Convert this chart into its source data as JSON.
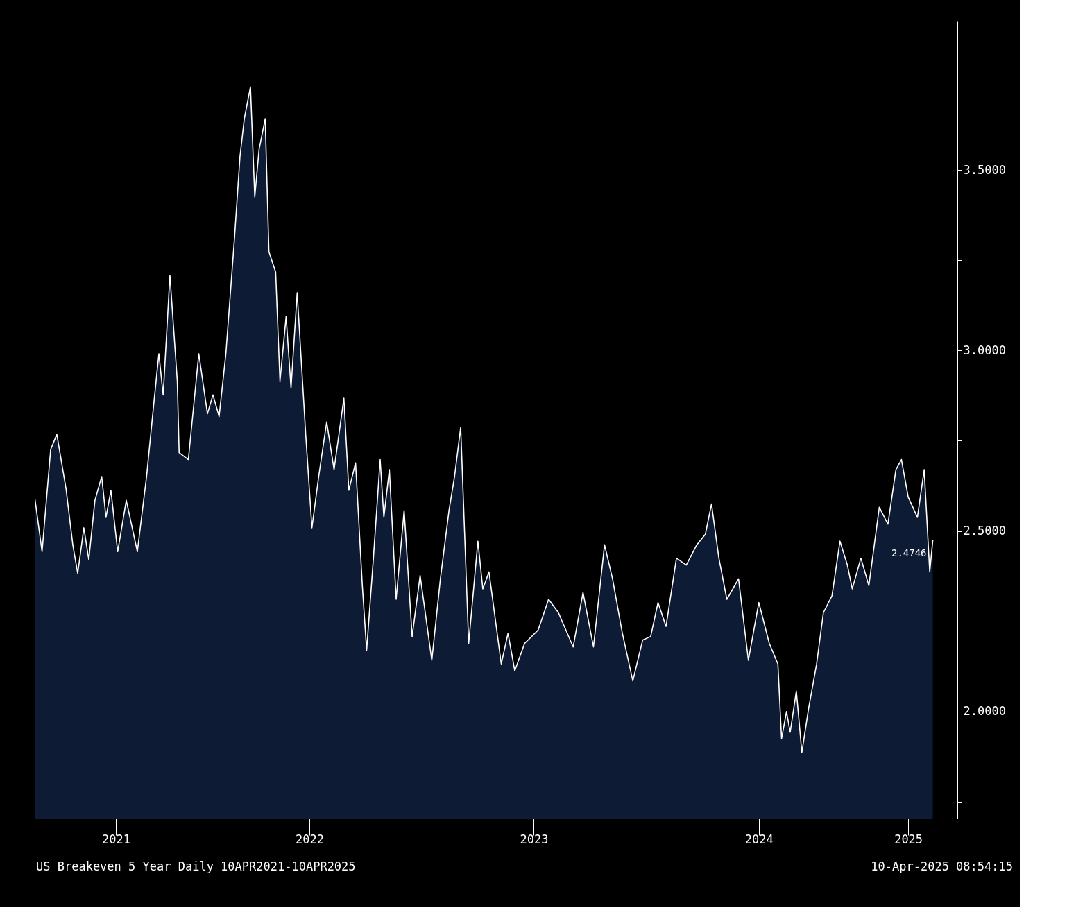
{
  "chart_data": {
    "type": "area",
    "x": [
      "2021-04-10",
      "2021-04-22",
      "2021-05-06",
      "2021-05-16",
      "2021-05-31",
      "2021-06-11",
      "2021-06-19",
      "2021-06-29",
      "2021-07-07",
      "2021-07-17",
      "2021-07-28",
      "2021-08-04",
      "2021-08-12",
      "2021-08-23",
      "2021-09-06",
      "2021-09-24",
      "2021-10-09",
      "2021-10-20",
      "2021-10-29",
      "2021-11-05",
      "2021-11-16",
      "2021-11-28",
      "2021-12-01",
      "2021-12-16",
      "2022-01-02",
      "2022-01-16",
      "2022-01-25",
      "2022-02-04",
      "2022-02-15",
      "2022-03-01",
      "2022-03-10",
      "2022-03-17",
      "2022-03-27",
      "2022-04-03",
      "2022-04-10",
      "2022-04-20",
      "2022-04-26",
      "2022-05-07",
      "2022-05-14",
      "2022-05-24",
      "2022-06-01",
      "2022-06-11",
      "2022-06-25",
      "2022-07-05",
      "2022-07-16",
      "2022-07-29",
      "2022-08-10",
      "2022-08-26",
      "2022-09-03",
      "2022-09-14",
      "2022-09-25",
      "2022-10-02",
      "2022-10-13",
      "2022-10-24",
      "2022-10-30",
      "2022-11-08",
      "2022-11-19",
      "2022-12-02",
      "2022-12-15",
      "2022-12-28",
      "2023-01-16",
      "2023-01-30",
      "2023-02-13",
      "2023-02-22",
      "2023-03-04",
      "2023-03-17",
      "2023-04-01",
      "2023-04-09",
      "2023-04-19",
      "2023-05-09",
      "2023-05-20",
      "2023-05-31",
      "2023-06-16",
      "2023-07-08",
      "2023-07-25",
      "2023-08-10",
      "2023-09-03",
      "2023-09-19",
      "2023-10-06",
      "2023-10-24",
      "2023-11-06",
      "2023-11-22",
      "2023-12-09",
      "2023-12-25",
      "2024-01-07",
      "2024-01-19",
      "2024-02-01",
      "2024-02-18",
      "2024-03-05",
      "2024-03-22",
      "2024-04-05",
      "2024-04-15",
      "2024-04-27",
      "2024-05-10",
      "2024-05-29",
      "2024-06-14",
      "2024-07-01",
      "2024-07-18",
      "2024-08-01",
      "2024-08-07",
      "2024-08-15",
      "2024-08-21",
      "2024-08-31",
      "2024-09-09",
      "2024-09-20",
      "2024-10-03",
      "2024-10-14",
      "2024-10-28",
      "2024-11-10",
      "2024-11-22",
      "2024-11-30",
      "2024-12-14",
      "2024-12-27",
      "2025-01-13",
      "2025-01-27",
      "2025-02-09",
      "2025-02-18",
      "2025-03-01",
      "2025-03-16",
      "2025-03-27",
      "2025-04-05",
      "2025-04-10"
    ],
    "series": [
      {
        "color": "#ffffff",
        "value_labels": [
          null,
          null,
          null,
          null,
          null,
          null,
          null,
          null,
          null,
          null,
          null,
          null,
          null,
          null,
          null,
          null,
          null,
          null,
          null,
          null,
          null,
          null,
          null,
          null,
          null,
          null,
          null,
          null,
          null,
          null,
          null,
          null,
          null,
          null,
          null,
          null,
          null,
          null,
          null,
          null,
          null,
          null,
          null,
          null,
          null,
          null,
          null,
          null,
          null,
          null,
          null,
          null,
          null,
          null,
          null,
          null,
          null,
          null,
          null,
          null,
          null,
          null,
          null,
          null,
          null,
          null,
          null,
          null,
          null,
          null,
          null,
          null,
          null,
          null,
          null,
          null,
          null,
          null,
          null,
          null,
          null,
          null,
          null,
          null,
          null,
          null,
          null,
          null,
          null,
          null,
          null,
          null,
          null,
          null,
          null,
          null,
          null,
          null,
          null,
          null,
          null,
          null,
          null,
          null,
          null,
          null,
          null,
          null,
          null,
          null,
          null,
          null,
          null,
          null,
          null,
          null,
          null,
          null,
          null,
          null,
          null,
          "2.4746"
        ],
        "values": [
          2.594,
          2.443,
          2.726,
          2.768,
          2.617,
          2.462,
          2.383,
          2.509,
          2.421,
          2.585,
          2.651,
          2.538,
          2.613,
          2.443,
          2.585,
          2.443,
          2.651,
          2.84,
          2.991,
          2.877,
          3.208,
          2.915,
          2.717,
          2.698,
          2.991,
          2.825,
          2.877,
          2.817,
          2.991,
          3.311,
          3.538,
          3.642,
          3.73,
          3.425,
          3.557,
          3.642,
          3.274,
          3.217,
          2.915,
          3.094,
          2.896,
          3.16,
          2.764,
          2.509,
          2.651,
          2.802,
          2.67,
          2.868,
          2.613,
          2.689,
          2.349,
          2.17,
          2.425,
          2.698,
          2.538,
          2.67,
          2.311,
          2.557,
          2.208,
          2.377,
          2.142,
          2.368,
          2.557,
          2.651,
          2.787,
          2.189,
          2.472,
          2.34,
          2.387,
          2.132,
          2.217,
          2.113,
          2.189,
          2.226,
          2.311,
          2.274,
          2.179,
          2.33,
          2.179,
          2.462,
          2.368,
          2.217,
          2.085,
          2.198,
          2.208,
          2.302,
          2.236,
          2.425,
          2.406,
          2.462,
          2.491,
          2.575,
          2.425,
          2.311,
          2.368,
          2.142,
          2.302,
          2.189,
          2.132,
          1.925,
          2.0,
          1.943,
          2.057,
          1.887,
          2.009,
          2.132,
          2.274,
          2.321,
          2.472,
          2.406,
          2.34,
          2.425,
          2.349,
          2.566,
          2.519,
          2.67,
          2.698,
          2.594,
          2.538,
          2.67,
          2.387,
          2.4746
        ]
      }
    ],
    "xlim": [
      "2021-04-10",
      "2025-05-20"
    ],
    "xticks": [
      {
        "value": "2021-08-20",
        "label": "2021"
      },
      {
        "value": "2022-07-01",
        "label": "2022"
      },
      {
        "value": "2023-07-01",
        "label": "2023"
      },
      {
        "value": "2024-07-01",
        "label": "2024"
      },
      {
        "value": "2025-03-01",
        "label": "2025"
      }
    ],
    "ylim": [
      1.704,
      3.913
    ],
    "yticks": [
      {
        "value": 1.75,
        "label": null
      },
      {
        "value": 2.0,
        "label": "2.0000"
      },
      {
        "value": 2.25,
        "label": null
      },
      {
        "value": 2.5,
        "label": "2.5000"
      },
      {
        "value": 2.75,
        "label": null
      },
      {
        "value": 3.0,
        "label": "3.0000"
      },
      {
        "value": 3.25,
        "label": null
      },
      {
        "value": 3.5,
        "label": "3.5000"
      },
      {
        "value": 3.75,
        "label": null
      }
    ],
    "grid": false,
    "annotations": [
      "US Breakeven 5 Year  Daily 10APR2021-10APR2025",
      "10-Apr-2025 08:54:15"
    ]
  }
}
